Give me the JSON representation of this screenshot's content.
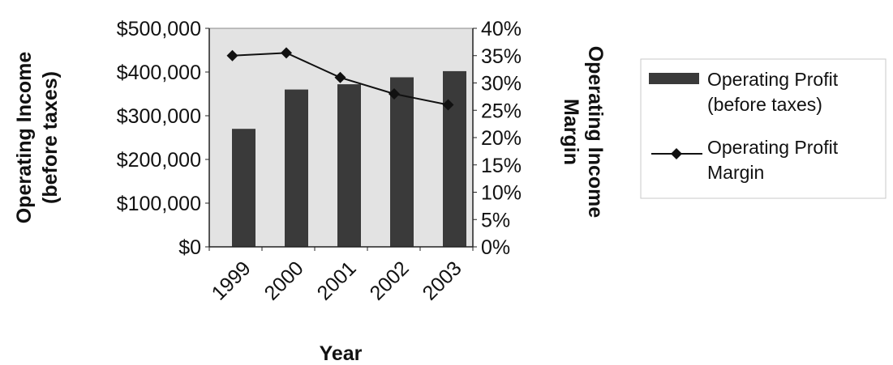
{
  "chart_data": {
    "type": "bar",
    "title": "",
    "categories": [
      "1999",
      "2000",
      "2001",
      "2002",
      "2003"
    ],
    "xlabel": "Year",
    "ylabel": "Operating Income (before taxes)",
    "y2label": "Operating Income Margin",
    "ylim": [
      0,
      500000
    ],
    "y2lim": [
      0,
      0.4
    ],
    "yticks": [
      "$0",
      "$100,000",
      "$200,000",
      "$300,000",
      "$400,000",
      "$500,000"
    ],
    "y2ticks": [
      "0%",
      "5%",
      "10%",
      "15%",
      "20%",
      "25%",
      "30%",
      "35%",
      "40%"
    ],
    "grid": false,
    "legend_position": "right",
    "series": [
      {
        "name": "Operating Profit (before taxes)",
        "kind": "bar",
        "axis": "left",
        "color": "#3a3a3a",
        "values": [
          270000,
          360000,
          372000,
          388000,
          402000
        ]
      },
      {
        "name": "Operating Profit Margin",
        "kind": "line",
        "axis": "right",
        "marker": "diamond",
        "color": "#111111",
        "values": [
          0.35,
          0.355,
          0.31,
          0.28,
          0.26
        ]
      }
    ],
    "legend": {
      "items": [
        {
          "lines": [
            "Operating Profit",
            "(before taxes)"
          ]
        },
        {
          "lines": [
            "Operating Profit",
            "Margin"
          ]
        }
      ]
    },
    "colors": {
      "plot_background": "#e3e3e3",
      "bar": "#3a3a3a",
      "line": "#111111"
    }
  }
}
